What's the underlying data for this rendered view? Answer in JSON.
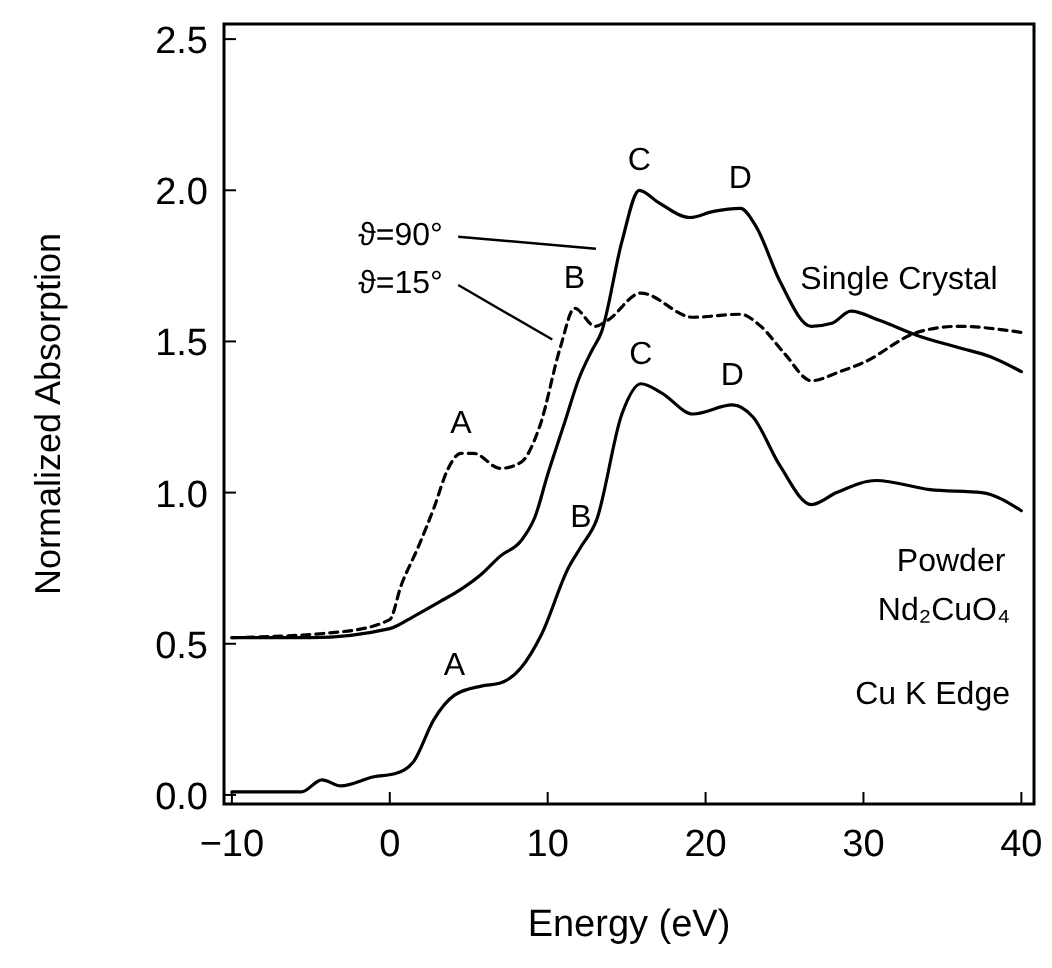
{
  "chart_data": {
    "type": "line",
    "xlabel": "Energy (eV)",
    "ylabel": "Normalized Absorption",
    "xlim": [
      -10.5,
      40.8
    ],
    "ylim": [
      -0.03,
      2.55
    ],
    "xticks": [
      -10,
      0,
      10,
      20,
      30,
      40
    ],
    "yticks": [
      {
        "value": 0,
        "label": "0.0"
      },
      0.5,
      {
        "value": 1,
        "label": "1.0"
      },
      1.5,
      {
        "value": 2,
        "label": "2.0"
      },
      2.5
    ],
    "grid": false,
    "legend": "top left",
    "marker": "none",
    "series": [
      {
        "name": "ϑ=90°",
        "color": "#000000",
        "line_style": "solid",
        "x": [
          -10,
          -5,
          0,
          1.5,
          3.2,
          4.5,
          5.8,
          7,
          8.3,
          9.2,
          10,
          11,
          12,
          12.8,
          13.4,
          14.7,
          15.8,
          17,
          19,
          20.5,
          22.2,
          23.2,
          24.7,
          26.7,
          28,
          29.2,
          31,
          33.4,
          36,
          38,
          40
        ],
        "values": [
          0.52,
          0.52,
          0.55,
          0.59,
          0.64,
          0.68,
          0.73,
          0.79,
          0.84,
          0.92,
          1.06,
          1.22,
          1.38,
          1.47,
          1.53,
          1.83,
          2.0,
          1.96,
          1.91,
          1.93,
          1.94,
          1.88,
          1.7,
          1.55,
          1.56,
          1.6,
          1.57,
          1.52,
          1.48,
          1.45,
          1.4
        ]
      },
      {
        "name": "ϑ=15°",
        "color": "#000000",
        "line_style": "dashed",
        "x": [
          -10,
          -3,
          0,
          0.7,
          1.8,
          2.8,
          3.7,
          4.5,
          5.3,
          7,
          8.3,
          9.5,
          10.8,
          11.7,
          13,
          13.8,
          15.9,
          19.2,
          22.2,
          23.5,
          25,
          26.7,
          28.5,
          30,
          33.4,
          36,
          40
        ],
        "values": [
          0.52,
          0.54,
          0.58,
          0.69,
          0.82,
          0.95,
          1.08,
          1.13,
          1.13,
          1.08,
          1.1,
          1.22,
          1.48,
          1.61,
          1.55,
          1.57,
          1.66,
          1.58,
          1.59,
          1.55,
          1.46,
          1.37,
          1.4,
          1.43,
          1.53,
          1.55,
          1.53
        ]
      },
      {
        "name": "Powder",
        "color": "#000000",
        "line_style": "solid",
        "x": [
          -10,
          -5.6,
          -4.3,
          -3.1,
          -1,
          0.3,
          1.5,
          2.8,
          4.1,
          5.8,
          7,
          8.3,
          9.6,
          11.3,
          12.1,
          13.1,
          14.7,
          15.9,
          17.2,
          19.2,
          21.7,
          23,
          24.7,
          26.7,
          28.3,
          30.8,
          34.2,
          37.5,
          40
        ],
        "values": [
          0.01,
          0.01,
          0.05,
          0.03,
          0.06,
          0.07,
          0.11,
          0.25,
          0.33,
          0.36,
          0.37,
          0.42,
          0.53,
          0.75,
          0.82,
          0.91,
          1.26,
          1.36,
          1.33,
          1.26,
          1.29,
          1.25,
          1.09,
          0.96,
          1.0,
          1.04,
          1.01,
          1.0,
          0.94
        ]
      }
    ],
    "annotations": [
      {
        "text": "A",
        "x": 4.5,
        "y": 1.13
      },
      {
        "text": "B",
        "x": 11.7,
        "y": 1.61
      },
      {
        "text": "C",
        "x": 15.8,
        "y": 2.0
      },
      {
        "text": "D",
        "x": 22.2,
        "y": 1.94
      },
      {
        "text": "C",
        "x": 15.9,
        "y": 1.36
      },
      {
        "text": "D",
        "x": 21.7,
        "y": 1.29
      },
      {
        "text": "A",
        "x": 4.1,
        "y": 0.33
      },
      {
        "text": "B",
        "x": 12.1,
        "y": 0.82
      },
      {
        "text": "Single Crystal",
        "x": 26,
        "y": 1.58
      },
      "Nd₂CuO₄",
      "Cu K Edge"
    ]
  }
}
